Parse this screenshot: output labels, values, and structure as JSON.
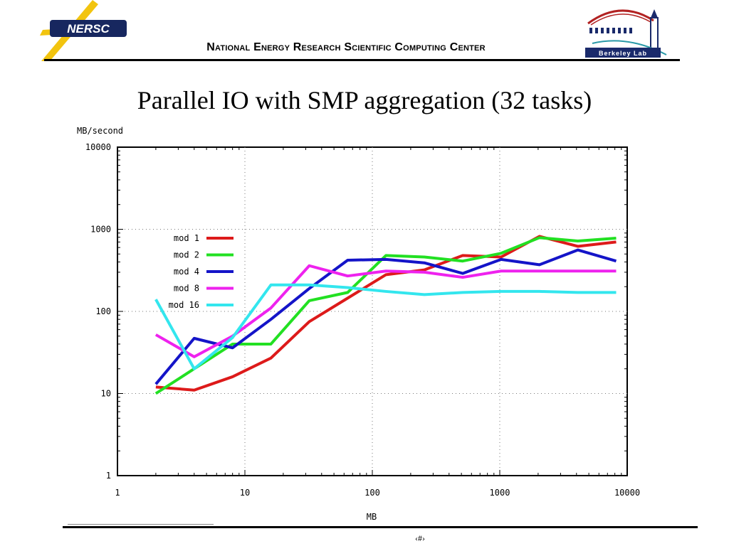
{
  "header": {
    "org_name": "National Energy Research Scientific Computing Center",
    "logo_left_text": "NERSC",
    "logo_right_text": "Berkeley Lab"
  },
  "slide": {
    "title": "Parallel IO with SMP aggregation (32 tasks)",
    "page_number": "‹#›"
  },
  "chart_data": {
    "type": "line",
    "title": "",
    "xlabel": "MB",
    "ylabel": "MB/second",
    "xscale": "log",
    "yscale": "log",
    "xlim": [
      1,
      10000
    ],
    "ylim": [
      1,
      10000
    ],
    "xticks": [
      "1",
      "10",
      "100",
      "1000",
      "10000"
    ],
    "yticks": [
      "1",
      "10",
      "100",
      "1000",
      "10000"
    ],
    "grid": true,
    "legend_position": "inside-left",
    "x": [
      2,
      4,
      8,
      16,
      32,
      64,
      128,
      256,
      512,
      1024,
      2048,
      4096,
      8192
    ],
    "series": [
      {
        "name": "mod 1",
        "color": "#dd1a1a",
        "values": [
          12,
          11,
          16,
          27,
          75,
          145,
          280,
          320,
          480,
          460,
          820,
          620,
          700
        ]
      },
      {
        "name": "mod 2",
        "color": "#22e022",
        "values": [
          10,
          20,
          40,
          40,
          135,
          170,
          480,
          460,
          410,
          510,
          790,
          720,
          780
        ]
      },
      {
        "name": "mod 4",
        "color": "#1414c8",
        "values": [
          13,
          47,
          36,
          80,
          190,
          420,
          430,
          390,
          290,
          430,
          370,
          560,
          410
        ]
      },
      {
        "name": "mod 8",
        "color": "#ee22ee",
        "values": [
          52,
          28,
          50,
          110,
          360,
          270,
          310,
          300,
          260,
          310,
          310,
          310,
          310
        ]
      },
      {
        "name": "mod 16",
        "color": "#33e6ee",
        "values": [
          140,
          20,
          48,
          210,
          210,
          195,
          175,
          160,
          170,
          175,
          175,
          170,
          170
        ]
      }
    ]
  }
}
